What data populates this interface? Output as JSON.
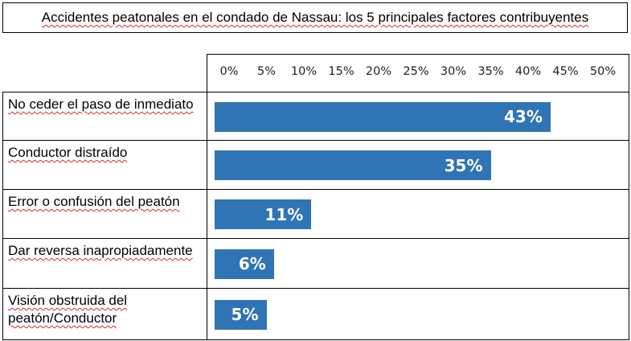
{
  "chart_data": {
    "type": "bar",
    "orientation": "horizontal",
    "title": "Accidentes peatonales en el condado de Nassau: los 5 principales factores contribuyentes",
    "x_ticks": [
      "0%",
      "5%",
      "10%",
      "15%",
      "20%",
      "25%",
      "30%",
      "35%",
      "40%",
      "45%",
      "50%"
    ],
    "xlim": [
      0,
      50
    ],
    "categories": [
      "No ceder el paso de inmediato",
      "Conductor distraído",
      "Error o confusión del peatón",
      "Dar reversa inapropiadamente",
      "Visión obstruida del peatón/Conductor"
    ],
    "values": [
      43,
      35,
      11,
      6,
      5
    ],
    "data_labels": [
      "43%",
      "35%",
      "11%",
      "6%",
      "5%"
    ],
    "bar_color": "#2f74b5"
  }
}
